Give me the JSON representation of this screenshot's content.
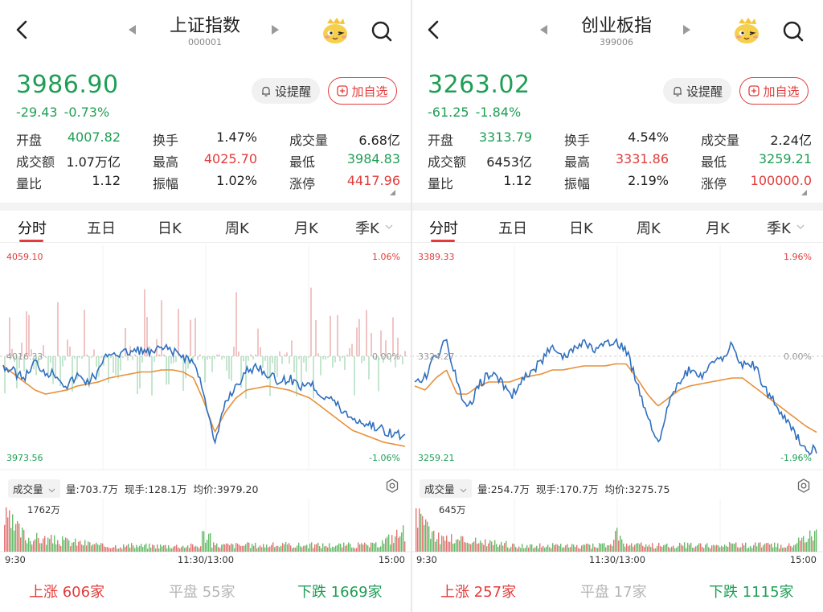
{
  "panels": [
    {
      "title": "上证指数",
      "code": "000001",
      "price": "3986.90",
      "change": "-29.43",
      "change_pct": "-0.73%",
      "alert_label": "设提醒",
      "add_label": "加自选",
      "stats": [
        [
          [
            "开盘",
            "4007.82",
            "green"
          ],
          [
            "换手",
            "1.47%",
            "dark"
          ],
          [
            "成交量",
            "6.68亿",
            "dark"
          ]
        ],
        [
          [
            "成交额",
            "1.07万亿",
            "dark"
          ],
          [
            "最高",
            "4025.70",
            "red"
          ],
          [
            "最低",
            "3984.83",
            "green"
          ]
        ],
        [
          [
            "量比",
            "1.12",
            "dark"
          ],
          [
            "振幅",
            "1.02%",
            "dark"
          ],
          [
            "涨停",
            "4417.96",
            "red"
          ]
        ]
      ],
      "tabs": [
        "分时",
        "五日",
        "日K",
        "周K",
        "月K",
        "季K"
      ],
      "chart": {
        "y_high": "4059.10",
        "y_mid": "4016.33",
        "y_low": "3973.56",
        "pct_high": "1.06%",
        "pct_mid": "0.00%",
        "pct_low": "-1.06%"
      },
      "volume": {
        "tag": "成交量",
        "info": [
          "量:703.7万",
          "现手:128.1万",
          "均价:3979.20"
        ],
        "max_label": "1762万",
        "times": [
          "9:30",
          "11:30/13:00",
          "15:00"
        ]
      },
      "breadth": {
        "up_label": "上涨",
        "up_count": "606家",
        "flat_label": "平盘",
        "flat_count": "55家",
        "down_label": "下跌",
        "down_count": "1669家"
      }
    },
    {
      "title": "创业板指",
      "code": "399006",
      "price": "3263.02",
      "change": "-61.25",
      "change_pct": "-1.84%",
      "alert_label": "设提醒",
      "add_label": "加自选",
      "stats": [
        [
          [
            "开盘",
            "3313.79",
            "green"
          ],
          [
            "换手",
            "4.54%",
            "dark"
          ],
          [
            "成交量",
            "2.24亿",
            "dark"
          ]
        ],
        [
          [
            "成交额",
            "6453亿",
            "dark"
          ],
          [
            "最高",
            "3331.86",
            "red"
          ],
          [
            "最低",
            "3259.21",
            "green"
          ]
        ],
        [
          [
            "量比",
            "1.12",
            "dark"
          ],
          [
            "振幅",
            "2.19%",
            "dark"
          ],
          [
            "涨停",
            "100000.0",
            "red"
          ]
        ]
      ],
      "tabs": [
        "分时",
        "五日",
        "日K",
        "周K",
        "月K",
        "季K"
      ],
      "chart": {
        "y_high": "3389.33",
        "y_mid": "3324.27",
        "y_low": "3259.21",
        "pct_high": "1.96%",
        "pct_mid": "0.00%",
        "pct_low": "-1.96%"
      },
      "volume": {
        "tag": "成交量",
        "info": [
          "量:254.7万",
          "现手:170.7万",
          "均价:3275.75"
        ],
        "max_label": "645万",
        "times": [
          "9:30",
          "11:30/13:00",
          "15:00"
        ]
      },
      "breadth": {
        "up_label": "上涨",
        "up_count": "257家",
        "flat_label": "平盘",
        "flat_count": "17家",
        "down_label": "下跌",
        "down_count": "1115家"
      }
    }
  ],
  "colors": {
    "up": "#e23b3b",
    "down": "#1f9e55",
    "price_line": "#2f6fbf",
    "avg_line": "#e6913a",
    "muted": "#b5b5b5"
  },
  "icons": [
    "back-arrow-icon",
    "prev-triangle-icon",
    "next-triangle-icon",
    "mascot-icon",
    "search-icon",
    "bell-icon",
    "plus-square-icon",
    "gear-icon",
    "chevron-down-icon"
  ]
}
